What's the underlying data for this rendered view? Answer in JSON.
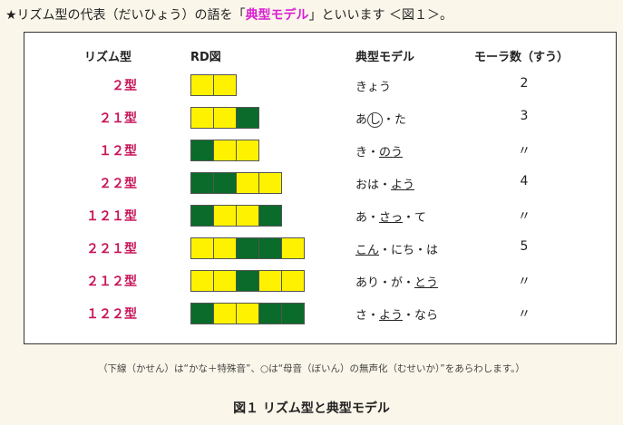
{
  "intro": {
    "before": "★リズム型の代表（だいひょう）の語を「",
    "highlight": "典型モデル",
    "after": "」といいます ＜図１＞。"
  },
  "table": {
    "headers": {
      "type": "リズム型",
      "rd": "RD図",
      "model": "典型モデル",
      "mora": "モーラ数（すう）"
    },
    "colors": {
      "yellow": "#fff200",
      "green": "#0a6b2a",
      "label": "#c8155a"
    },
    "rows": [
      {
        "type": "２型",
        "cells": [
          "Y",
          "Y"
        ],
        "word": [
          {
            "t": "きょう"
          }
        ],
        "mora": "2"
      },
      {
        "type": "２１型",
        "cells": [
          "Y",
          "Y",
          "G"
        ],
        "word": [
          {
            "t": "あ"
          },
          {
            "t": "し",
            "c": true
          },
          {
            "t": "・た"
          }
        ],
        "mora": "3"
      },
      {
        "type": "１２型",
        "cells": [
          "G",
          "Y",
          "Y"
        ],
        "word": [
          {
            "t": "き・"
          },
          {
            "t": "のう",
            "u": true
          }
        ],
        "mora": "〃"
      },
      {
        "type": "２２型",
        "cells": [
          "G",
          "G",
          "Y",
          "Y"
        ],
        "word": [
          {
            "t": "おは・"
          },
          {
            "t": "よう",
            "u": true
          }
        ],
        "mora": "4"
      },
      {
        "type": "１２１型",
        "cells": [
          "G",
          "Y",
          "Y",
          "G"
        ],
        "word": [
          {
            "t": "あ・"
          },
          {
            "t": "さっ",
            "u": true
          },
          {
            "t": "・て"
          }
        ],
        "mora": "〃"
      },
      {
        "type": "２２１型",
        "cells": [
          "Y",
          "Y",
          "G",
          "G",
          "Y"
        ],
        "word": [
          {
            "t": "こん",
            "u": true
          },
          {
            "t": "・にち・は"
          }
        ],
        "mora": "5"
      },
      {
        "type": "２１２型",
        "cells": [
          "Y",
          "Y",
          "G",
          "Y",
          "Y"
        ],
        "word": [
          {
            "t": "あり・が・"
          },
          {
            "t": "とう",
            "u": true
          }
        ],
        "mora": "〃"
      },
      {
        "type": "１２２型",
        "cells": [
          "G",
          "Y",
          "Y",
          "G",
          "G"
        ],
        "word": [
          {
            "t": "さ・"
          },
          {
            "t": "よう",
            "u": true
          },
          {
            "t": "・なら"
          }
        ],
        "mora": "〃"
      }
    ]
  },
  "note": "（下線（かせん）は“かな＋特殊音”、○は“母音（ぼいん）の無声化（むせいか）”をあらわします。）",
  "caption": "図１ リズム型と典型モデル"
}
